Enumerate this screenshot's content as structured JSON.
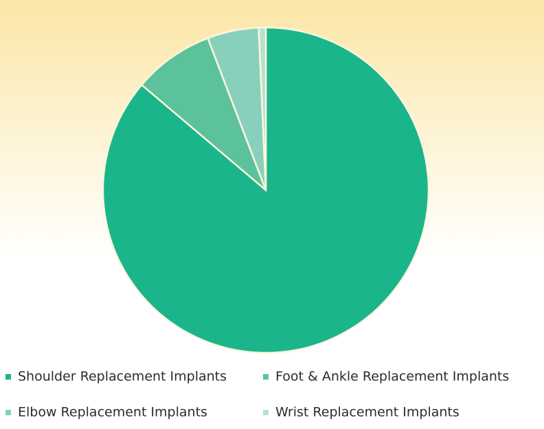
{
  "chart_data": {
    "type": "pie",
    "categories": [
      "Shoulder Replacement Implants",
      "Foot & Ankle Replacement Implants",
      "Elbow Replacement Implants",
      "Wrist Replacement Implants"
    ],
    "values": [
      86.2,
      8.0,
      5.1,
      0.7
    ],
    "colors": [
      "#1ab58b",
      "#5cc29b",
      "#88d0bb",
      "#b5e2d2"
    ]
  }
}
